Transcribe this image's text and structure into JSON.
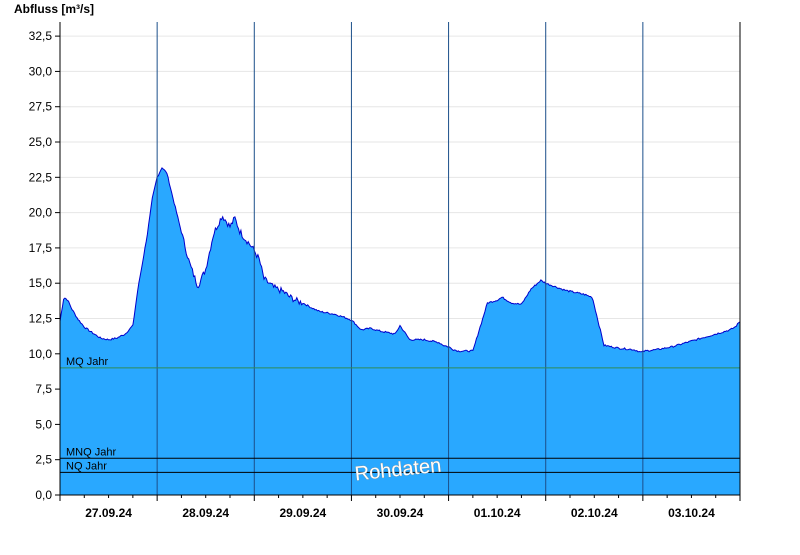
{
  "chart_data": {
    "type": "area",
    "title": "",
    "ylabel": "Abfluss [m³/s]",
    "xlabel": "",
    "ylim": [
      0,
      33.5
    ],
    "yticks": [
      0,
      2.5,
      5,
      7.5,
      10,
      12.5,
      15,
      17.5,
      20,
      22.5,
      25,
      27.5,
      30,
      32.5
    ],
    "ytick_labels": [
      "0,0",
      "2,5",
      "5,0",
      "7,5",
      "10,0",
      "12,5",
      "15,0",
      "17,5",
      "20,0",
      "22,5",
      "25,0",
      "27,5",
      "30,0",
      "32,5"
    ],
    "xlim_days": [
      0,
      7
    ],
    "day_labels": [
      "27.09.24",
      "28.09.24",
      "29.09.24",
      "30.09.24",
      "01.10.24",
      "02.10.24",
      "03.10.24"
    ],
    "x_days": [
      0,
      0.04,
      0.08,
      0.12,
      0.18,
      0.25,
      0.33,
      0.42,
      0.5,
      0.58,
      0.67,
      0.75,
      0.8,
      0.85,
      0.9,
      0.95,
      1.0,
      1.05,
      1.1,
      1.2,
      1.28,
      1.33,
      1.38,
      1.42,
      1.5,
      1.58,
      1.67,
      1.75,
      1.8,
      1.85,
      1.9,
      1.95,
      2.0,
      2.05,
      2.1,
      2.2,
      2.3,
      2.35,
      2.4,
      2.45,
      2.5,
      2.58,
      2.67,
      2.75,
      2.83,
      2.92,
      3.0,
      3.1,
      3.2,
      3.3,
      3.45,
      3.5,
      3.6,
      3.75,
      3.9,
      3.95,
      4.0,
      4.05,
      4.1,
      4.25,
      4.4,
      4.5,
      4.55,
      4.65,
      4.75,
      4.85,
      4.95,
      5.0,
      5.04,
      5.2,
      5.4,
      5.48,
      5.6,
      5.75,
      5.9,
      5.95,
      5.98,
      6.02,
      6.15,
      6.3,
      6.45,
      6.55,
      6.7,
      6.8,
      6.9,
      6.95,
      7.0
    ],
    "y_values": [
      12.3,
      14.0,
      13.8,
      13.2,
      12.5,
      11.9,
      11.5,
      11.1,
      11.0,
      11.1,
      11.4,
      12.0,
      14.5,
      16.5,
      18.5,
      21.0,
      22.5,
      23.2,
      22.8,
      20.0,
      17.8,
      16.5,
      15.5,
      14.8,
      16.0,
      18.5,
      19.8,
      19.0,
      19.6,
      18.7,
      18.2,
      17.8,
      17.3,
      16.7,
      15.3,
      14.7,
      14.4,
      14.1,
      13.9,
      13.7,
      13.6,
      13.3,
      13.0,
      12.9,
      12.8,
      12.6,
      12.4,
      11.7,
      11.8,
      11.6,
      11.4,
      12.0,
      11.0,
      11.0,
      10.8,
      10.6,
      10.5,
      10.3,
      10.2,
      10.2,
      13.6,
      13.8,
      14.0,
      13.6,
      13.5,
      14.6,
      15.2,
      15.0,
      14.9,
      14.5,
      14.2,
      14.0,
      10.6,
      10.4,
      10.3,
      10.2,
      10.1,
      10.2,
      10.3,
      10.5,
      10.8,
      11.0,
      11.3,
      11.5,
      11.7,
      11.9,
      12.3
    ],
    "reference_lines": [
      {
        "label": "MQ Jahr",
        "value": 9.0,
        "color": "#2e8b57"
      },
      {
        "label": "MNQ Jahr",
        "value": 2.6,
        "color": "#000000"
      },
      {
        "label": "NQ Jahr",
        "value": 1.6,
        "color": "#000000"
      }
    ],
    "watermark": "Rohdaten",
    "fill_color": "#29a8ff",
    "line_color": "#0000cc",
    "grid": true
  }
}
